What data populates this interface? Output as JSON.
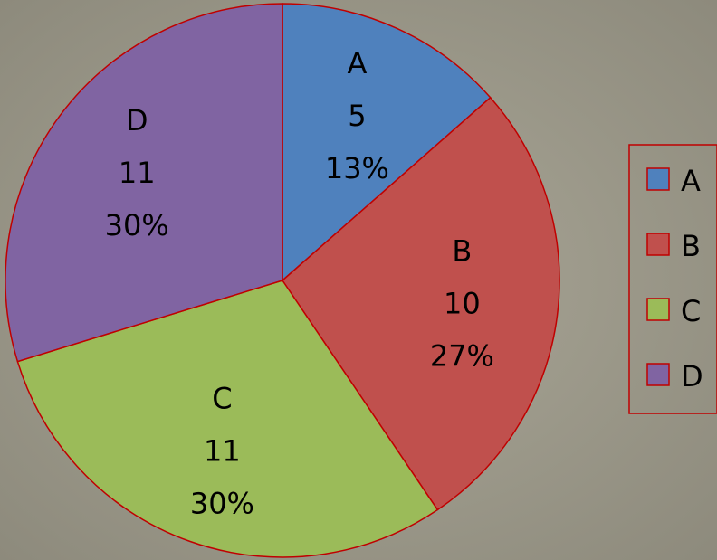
{
  "chart_data": {
    "type": "pie",
    "categories": [
      "A",
      "B",
      "C",
      "D"
    ],
    "values": [
      5,
      10,
      11,
      11
    ],
    "percent_labels": [
      "13%",
      "27%",
      "30%",
      "30%"
    ],
    "colors": [
      "#4f81bd",
      "#c0504d",
      "#9bbb59",
      "#8064a2"
    ],
    "outline_color": "#c00000",
    "legend_position": "right",
    "start_angle": "12 o'clock, clockwise",
    "title": ""
  }
}
